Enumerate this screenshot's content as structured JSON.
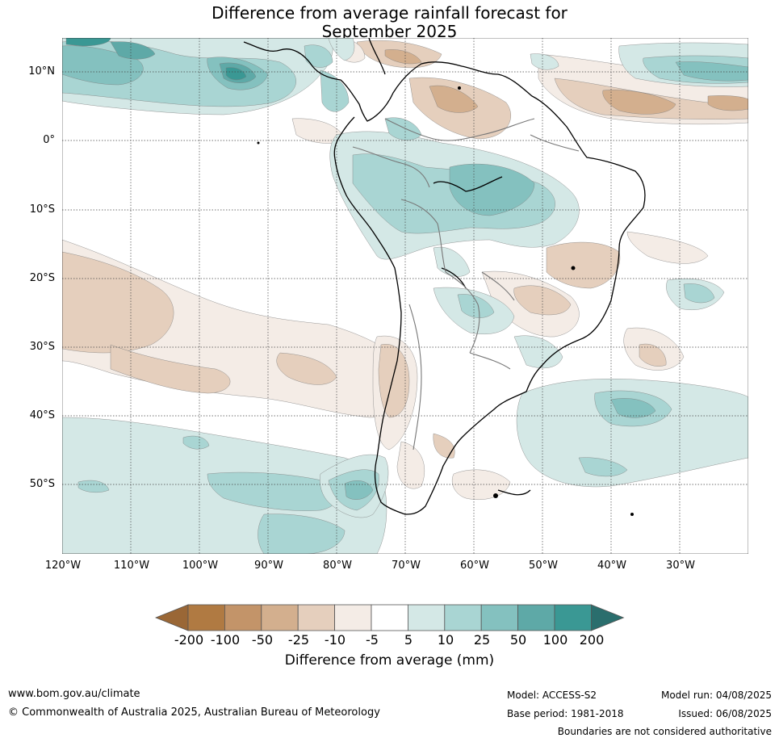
{
  "title": {
    "line1": "Difference from average rainfall forecast for",
    "line2": "September 2025"
  },
  "map": {
    "lat_labels": [
      "10°N",
      "0°",
      "10°S",
      "20°S",
      "30°S",
      "40°S",
      "50°S"
    ],
    "lon_labels": [
      "120°W",
      "110°W",
      "100°W",
      "90°W",
      "80°W",
      "70°W",
      "60°W",
      "50°W",
      "40°W",
      "30°W"
    ],
    "extent": {
      "lon": [
        -120,
        -20
      ],
      "lat": [
        -60,
        15
      ]
    }
  },
  "colorbar": {
    "labels": [
      "-200",
      "-100",
      "-50",
      "-25",
      "-10",
      "-5",
      "5",
      "10",
      "25",
      "50",
      "100",
      "200"
    ],
    "colors": [
      "#9a6736",
      "#b07a42",
      "#c39469",
      "#d3af8e",
      "#e5cfbd",
      "#f4ece6",
      "#ffffff",
      "#d4e8e6",
      "#a9d5d3",
      "#84c1bf",
      "#5ea9a7",
      "#3a9894",
      "#2a6e6d"
    ],
    "title": "Difference from average (mm)"
  },
  "footer": {
    "url": "www.bom.gov.au/climate",
    "copyright": "© Commonwealth of Australia 2025, Australian Bureau of Meteorology",
    "model": "Model: ACCESS-S2",
    "base_period": "Base period: 1981-2018",
    "model_run": "Model run: 04/08/2025",
    "issued": "Issued: 06/08/2025",
    "disclaimer": "Boundaries are not considered authoritative"
  }
}
